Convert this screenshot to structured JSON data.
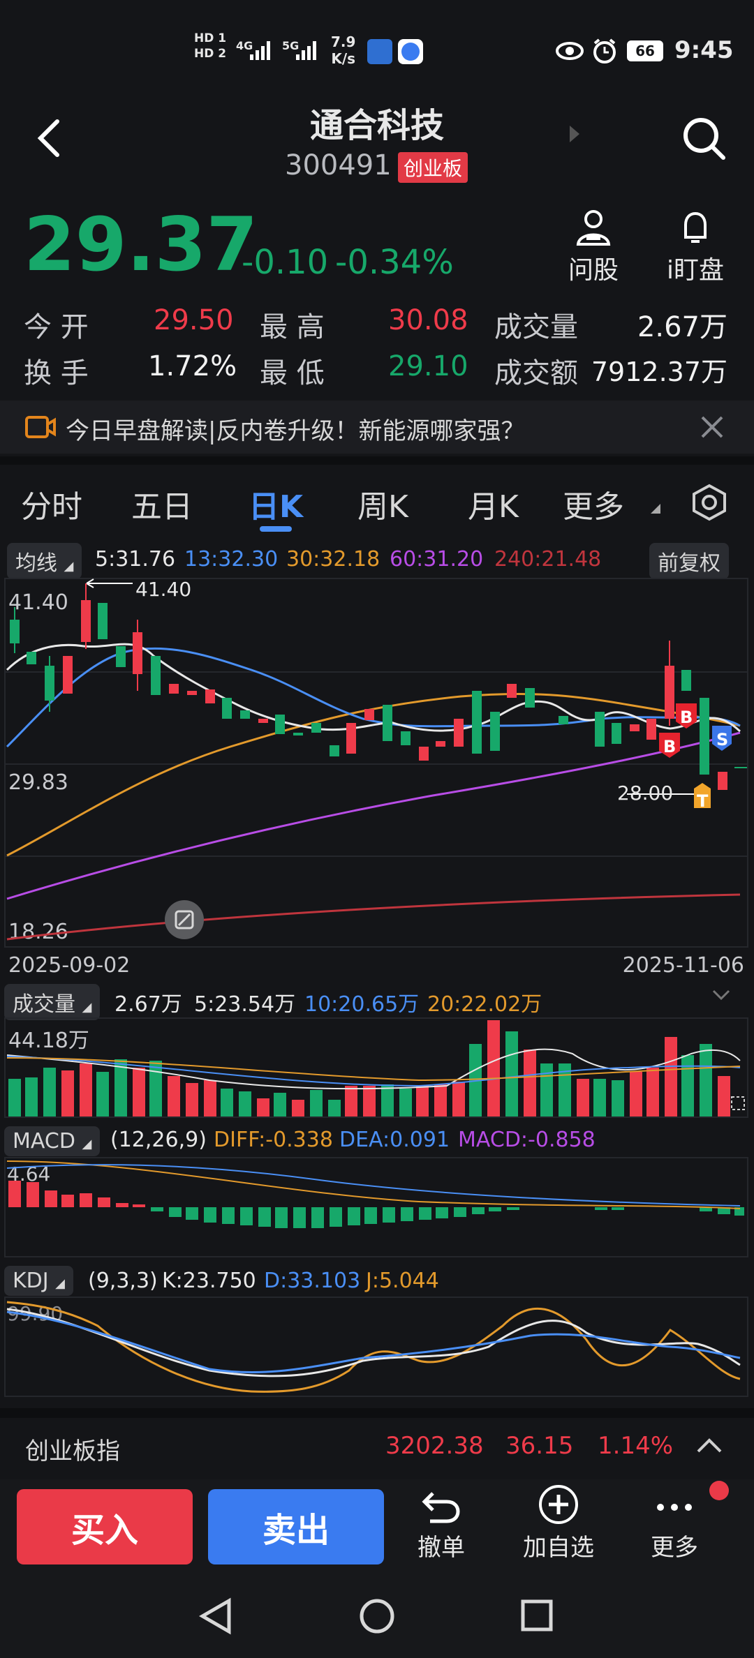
{
  "status": {
    "hd1": "HD 1",
    "hd2": "HD 2",
    "net1": "4G",
    "net2": "5G",
    "speed_value": "7.9",
    "speed_unit": "K/s",
    "battery": "66",
    "time": "9:45"
  },
  "header": {
    "title": "通合科技",
    "code": "300491",
    "board_badge": "创业板"
  },
  "quote": {
    "price": "29.37",
    "change": "-0.10",
    "change_pct": "-0.34%",
    "ask_label": "问股",
    "watch_label": "i盯盘",
    "open_label": "今 开",
    "open": "29.50",
    "high_label": "最 高",
    "high": "30.08",
    "vol_label": "成交量",
    "vol": "2.67万",
    "turnover_label": "换 手",
    "turnover": "1.72%",
    "low_label": "最 低",
    "low": "29.10",
    "amount_label": "成交额",
    "amount": "7912.37万"
  },
  "banner": {
    "text": "今日早盘解读|反内卷升级！新能源哪家强？"
  },
  "tabs": [
    "分时",
    "五日",
    "日K",
    "周K",
    "月K",
    "更多"
  ],
  "ma": {
    "label": "均线",
    "ma5": "5:31.76",
    "ma13": "13:32.30",
    "ma30": "30:32.18",
    "ma60": "60:31.20",
    "ma240": "240:21.48",
    "adjust": "前复权"
  },
  "kchart": {
    "y_top": "41.40",
    "y_mid": "29.83",
    "y_bot": "18.26",
    "high_mark": "41.40",
    "low_mark": "28.00",
    "date_start": "2025-09-02",
    "date_end": "2025-11-06",
    "signal_b": "B",
    "signal_s": "S",
    "signal_t": "T"
  },
  "volume": {
    "label": "成交量",
    "v": "2.67万",
    "ma5": "5:23.54万",
    "ma10": "10:20.65万",
    "ma20": "20:22.02万",
    "ymax": "44.18万"
  },
  "macd": {
    "label": "MACD",
    "params": "(12,26,9)",
    "diff": "DIFF:-0.338",
    "dea": "DEA:0.091",
    "macd": "MACD:-0.858",
    "ymax": "4.64"
  },
  "kdj": {
    "label": "KDJ",
    "params": "(9,3,3)",
    "k": "K:23.750",
    "d": "D:33.103",
    "j": "J:5.044",
    "ymax": "99.90"
  },
  "index_bar": {
    "name": "创业板指",
    "value": "3202.38",
    "change": "36.15",
    "pct": "1.14%"
  },
  "bottom": {
    "buy": "买入",
    "sell": "卖出",
    "cancel": "撤单",
    "add": "加自选",
    "more": "更多"
  },
  "colors": {
    "up": "#ef3b4a",
    "down": "#17a86a",
    "ma5": "#e8e8e8",
    "ma13": "#4a8ff5",
    "ma30": "#e39a2c",
    "ma60": "#b84de6",
    "ma240": "#c0353d"
  }
}
